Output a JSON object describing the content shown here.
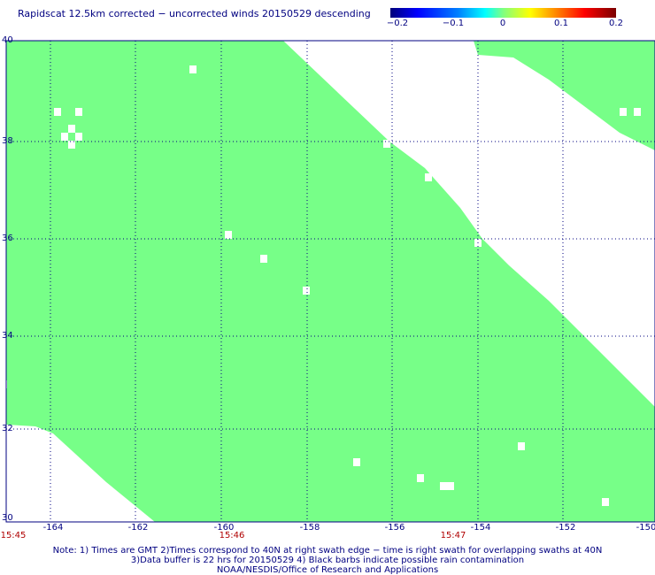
{
  "title": "Rapidscat 12.5km corrected − uncorrected winds 20150529 descending",
  "colorbar": {
    "ticks": [
      "−0.2",
      "−0.1",
      "0",
      "0.1",
      "0.2"
    ]
  },
  "map": {
    "lon_range": [
      -165,
      -150
    ],
    "lat_range": [
      30,
      40
    ],
    "lat_labels": [
      "40",
      "38",
      "36",
      "34",
      "32",
      "30"
    ],
    "lon_labels": [
      "-164",
      "-162",
      "-160",
      "-158",
      "-156",
      "-154",
      "-152",
      "-150"
    ],
    "time_labels": [
      "15:45",
      "15:46",
      "15:47"
    ],
    "swath_color": "#77ff88",
    "grid_color": "#000080"
  },
  "notes": {
    "line1": "Note: 1) Times are GMT 2)Times correspond to 40N at right swath edge − time is right swath for overlapping swaths at 40N",
    "line2": "3)Data buffer is 22 hrs for 20150529 4) Black barbs indicate possible rain contamination",
    "line3": "NOAA/NESDIS/Office of Research and Applications"
  }
}
